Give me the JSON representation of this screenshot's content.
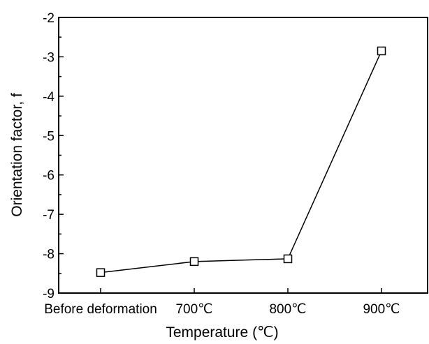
{
  "chart_data": {
    "type": "line",
    "title": "",
    "xlabel": "Temperature (℃)",
    "ylabel": "Orientation factor, f",
    "categories": [
      "Before deformation",
      "700℃",
      "800℃",
      "900℃"
    ],
    "series": [
      {
        "values": [
          -8.48,
          -8.2,
          -8.13,
          -2.85
        ],
        "marker": "open-square",
        "color": "#000000"
      }
    ],
    "ylim": [
      -9,
      -2
    ],
    "yticks": [
      -9,
      -8,
      -7,
      -6,
      -5,
      -4,
      -3,
      -2
    ],
    "ytick_labels": [
      "-9",
      "-8",
      "-7",
      "-6",
      "-5",
      "-4",
      "-3",
      "-2"
    ],
    "grid": false,
    "legend": "none"
  }
}
